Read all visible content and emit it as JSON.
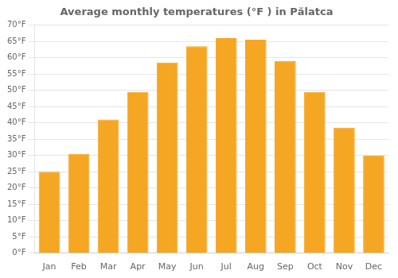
{
  "chart_data": {
    "type": "bar",
    "title": "Average monthly temperatures (°F ) in Pălatca",
    "categories": [
      "Jan",
      "Feb",
      "Mar",
      "Apr",
      "May",
      "Jun",
      "Jul",
      "Aug",
      "Sep",
      "Oct",
      "Nov",
      "Dec"
    ],
    "values": [
      25,
      30.5,
      41,
      49.5,
      58.5,
      63.5,
      66,
      65.5,
      59,
      49.5,
      38.5,
      30
    ],
    "color": "#F5A623",
    "ylim": [
      0,
      70
    ],
    "yticks": [
      {
        "value": 0,
        "label": "0°F"
      },
      {
        "value": 5,
        "label": "5°F"
      },
      {
        "value": 10,
        "label": "10°F"
      },
      {
        "value": 15,
        "label": "15°F"
      },
      {
        "value": 20,
        "label": "20°F"
      },
      {
        "value": 25,
        "label": "25°F"
      },
      {
        "value": 30,
        "label": "30°F"
      },
      {
        "value": 35,
        "label": "35°F"
      },
      {
        "value": 40,
        "label": "40°F"
      },
      {
        "value": 45,
        "label": "45°F"
      },
      {
        "value": 50,
        "label": "50°F"
      },
      {
        "value": 55,
        "label": "55°F"
      },
      {
        "value": 60,
        "label": "60°F"
      },
      {
        "value": 65,
        "label": "65°F"
      },
      {
        "value": 70,
        "label": "70°F"
      }
    ],
    "grid": true
  }
}
